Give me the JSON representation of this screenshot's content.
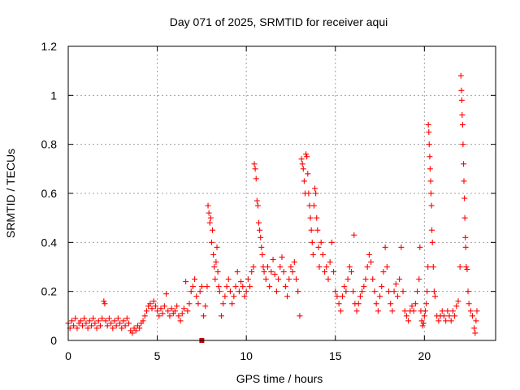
{
  "chart_data": {
    "type": "scatter",
    "title": "Day 071 of 2025, SRMTID for receiver aqui",
    "xlabel": "GPS time / hours",
    "ylabel": "SRMTID / TECUs",
    "xlim": [
      0,
      24
    ],
    "ylim": [
      0,
      1.2
    ],
    "xticks": [
      0,
      5,
      10,
      15,
      20
    ],
    "xtick_labels": [
      "0",
      "5",
      "10",
      "15",
      "20"
    ],
    "yticks": [
      0,
      0.2,
      0.4,
      0.6,
      0.8,
      1.0,
      1.2
    ],
    "ytick_labels": [
      "0",
      "0.2",
      "0.4",
      "0.6",
      "0.8",
      "1",
      "1.2"
    ],
    "grid": true,
    "marker": "+",
    "marker_color": "#ff0000",
    "series": [
      {
        "name": "SRMTID",
        "points": [
          [
            0.0,
            0.07
          ],
          [
            0.1,
            0.05
          ],
          [
            0.2,
            0.08
          ],
          [
            0.3,
            0.06
          ],
          [
            0.4,
            0.09
          ],
          [
            0.5,
            0.05
          ],
          [
            0.6,
            0.07
          ],
          [
            0.7,
            0.08
          ],
          [
            0.8,
            0.06
          ],
          [
            0.9,
            0.09
          ],
          [
            1.0,
            0.07
          ],
          [
            1.1,
            0.05
          ],
          [
            1.2,
            0.08
          ],
          [
            1.3,
            0.06
          ],
          [
            1.4,
            0.09
          ],
          [
            1.5,
            0.07
          ],
          [
            1.6,
            0.05
          ],
          [
            1.7,
            0.08
          ],
          [
            1.8,
            0.06
          ],
          [
            1.9,
            0.09
          ],
          [
            2.0,
            0.16
          ],
          [
            2.05,
            0.15
          ],
          [
            2.1,
            0.08
          ],
          [
            2.2,
            0.06
          ],
          [
            2.3,
            0.09
          ],
          [
            2.4,
            0.07
          ],
          [
            2.5,
            0.05
          ],
          [
            2.6,
            0.08
          ],
          [
            2.7,
            0.06
          ],
          [
            2.8,
            0.09
          ],
          [
            2.9,
            0.07
          ],
          [
            3.0,
            0.05
          ],
          [
            3.1,
            0.08
          ],
          [
            3.2,
            0.06
          ],
          [
            3.3,
            0.09
          ],
          [
            3.4,
            0.07
          ],
          [
            3.5,
            0.04
          ],
          [
            3.6,
            0.03
          ],
          [
            3.7,
            0.05
          ],
          [
            3.8,
            0.04
          ],
          [
            3.9,
            0.06
          ],
          [
            4.0,
            0.05
          ],
          [
            4.1,
            0.07
          ],
          [
            4.2,
            0.08
          ],
          [
            4.3,
            0.1
          ],
          [
            4.4,
            0.12
          ],
          [
            4.5,
            0.14
          ],
          [
            4.6,
            0.15
          ],
          [
            4.7,
            0.13
          ],
          [
            4.8,
            0.16
          ],
          [
            4.9,
            0.14
          ],
          [
            5.0,
            0.12
          ],
          [
            5.1,
            0.1
          ],
          [
            5.2,
            0.13
          ],
          [
            5.3,
            0.11
          ],
          [
            5.4,
            0.14
          ],
          [
            5.5,
            0.19
          ],
          [
            5.6,
            0.12
          ],
          [
            5.7,
            0.1
          ],
          [
            5.8,
            0.13
          ],
          [
            5.9,
            0.11
          ],
          [
            6.0,
            0.12
          ],
          [
            6.1,
            0.14
          ],
          [
            6.2,
            0.1
          ],
          [
            6.3,
            0.08
          ],
          [
            6.4,
            0.11
          ],
          [
            6.5,
            0.13
          ],
          [
            6.6,
            0.24
          ],
          [
            6.7,
            0.12
          ],
          [
            6.8,
            0.15
          ],
          [
            6.9,
            0.2
          ],
          [
            7.0,
            0.22
          ],
          [
            7.1,
            0.25
          ],
          [
            7.2,
            0.18
          ],
          [
            7.3,
            0.15
          ],
          [
            7.4,
            0.2
          ],
          [
            7.5,
            0.22
          ],
          [
            7.6,
            0.1
          ],
          [
            7.7,
            0.14
          ],
          [
            7.8,
            0.22
          ],
          [
            7.85,
            0.55
          ],
          [
            7.9,
            0.52
          ],
          [
            7.95,
            0.48
          ],
          [
            8.0,
            0.5
          ],
          [
            8.05,
            0.4
          ],
          [
            8.1,
            0.45
          ],
          [
            8.15,
            0.35
          ],
          [
            8.2,
            0.3
          ],
          [
            8.25,
            0.25
          ],
          [
            8.3,
            0.32
          ],
          [
            8.35,
            0.38
          ],
          [
            8.4,
            0.28
          ],
          [
            8.45,
            0.22
          ],
          [
            8.5,
            0.2
          ],
          [
            8.6,
            0.1
          ],
          [
            8.7,
            0.15
          ],
          [
            8.8,
            0.18
          ],
          [
            8.9,
            0.22
          ],
          [
            9.0,
            0.25
          ],
          [
            9.1,
            0.2
          ],
          [
            9.2,
            0.15
          ],
          [
            9.3,
            0.18
          ],
          [
            9.4,
            0.22
          ],
          [
            9.5,
            0.28
          ],
          [
            9.6,
            0.2
          ],
          [
            9.7,
            0.24
          ],
          [
            9.8,
            0.22
          ],
          [
            9.9,
            0.18
          ],
          [
            10.0,
            0.2
          ],
          [
            10.1,
            0.25
          ],
          [
            10.2,
            0.22
          ],
          [
            10.3,
            0.28
          ],
          [
            10.4,
            0.3
          ],
          [
            10.45,
            0.72
          ],
          [
            10.5,
            0.7
          ],
          [
            10.55,
            0.66
          ],
          [
            10.6,
            0.57
          ],
          [
            10.65,
            0.55
          ],
          [
            10.7,
            0.48
          ],
          [
            10.75,
            0.45
          ],
          [
            10.8,
            0.42
          ],
          [
            10.85,
            0.38
          ],
          [
            10.9,
            0.35
          ],
          [
            10.95,
            0.3
          ],
          [
            11.0,
            0.28
          ],
          [
            11.1,
            0.25
          ],
          [
            11.2,
            0.3
          ],
          [
            11.3,
            0.22
          ],
          [
            11.4,
            0.28
          ],
          [
            11.5,
            0.33
          ],
          [
            11.6,
            0.27
          ],
          [
            11.7,
            0.2
          ],
          [
            11.8,
            0.25
          ],
          [
            11.9,
            0.3
          ],
          [
            12.0,
            0.34
          ],
          [
            12.1,
            0.28
          ],
          [
            12.2,
            0.22
          ],
          [
            12.3,
            0.18
          ],
          [
            12.4,
            0.25
          ],
          [
            12.5,
            0.3
          ],
          [
            12.6,
            0.28
          ],
          [
            12.7,
            0.32
          ],
          [
            12.8,
            0.25
          ],
          [
            12.9,
            0.2
          ],
          [
            13.0,
            0.1
          ],
          [
            13.1,
            0.74
          ],
          [
            13.15,
            0.72
          ],
          [
            13.2,
            0.7
          ],
          [
            13.25,
            0.65
          ],
          [
            13.3,
            0.6
          ],
          [
            13.35,
            0.76
          ],
          [
            13.4,
            0.75
          ],
          [
            13.45,
            0.68
          ],
          [
            13.5,
            0.6
          ],
          [
            13.55,
            0.55
          ],
          [
            13.6,
            0.5
          ],
          [
            13.65,
            0.45
          ],
          [
            13.7,
            0.4
          ],
          [
            13.75,
            0.35
          ],
          [
            13.8,
            0.55
          ],
          [
            13.85,
            0.62
          ],
          [
            13.9,
            0.6
          ],
          [
            13.95,
            0.5
          ],
          [
            14.0,
            0.45
          ],
          [
            14.05,
            0.38
          ],
          [
            14.1,
            0.3
          ],
          [
            14.2,
            0.4
          ],
          [
            14.3,
            0.35
          ],
          [
            14.4,
            0.28
          ],
          [
            14.5,
            0.3
          ],
          [
            14.6,
            0.25
          ],
          [
            14.7,
            0.32
          ],
          [
            14.8,
            0.4
          ],
          [
            14.9,
            0.28
          ],
          [
            15.0,
            0.2
          ],
          [
            15.1,
            0.18
          ],
          [
            15.2,
            0.15
          ],
          [
            15.3,
            0.12
          ],
          [
            15.4,
            0.18
          ],
          [
            15.5,
            0.22
          ],
          [
            15.6,
            0.2
          ],
          [
            15.7,
            0.25
          ],
          [
            15.8,
            0.3
          ],
          [
            15.9,
            0.28
          ],
          [
            16.0,
            0.2
          ],
          [
            16.05,
            0.43
          ],
          [
            16.1,
            0.15
          ],
          [
            16.2,
            0.12
          ],
          [
            16.3,
            0.15
          ],
          [
            16.4,
            0.18
          ],
          [
            16.5,
            0.2
          ],
          [
            16.6,
            0.22
          ],
          [
            16.7,
            0.25
          ],
          [
            16.8,
            0.3
          ],
          [
            16.9,
            0.35
          ],
          [
            17.0,
            0.32
          ],
          [
            17.1,
            0.25
          ],
          [
            17.2,
            0.2
          ],
          [
            17.3,
            0.15
          ],
          [
            17.4,
            0.12
          ],
          [
            17.5,
            0.18
          ],
          [
            17.6,
            0.22
          ],
          [
            17.7,
            0.28
          ],
          [
            17.8,
            0.38
          ],
          [
            17.9,
            0.3
          ],
          [
            18.0,
            0.2
          ],
          [
            18.1,
            0.15
          ],
          [
            18.2,
            0.12
          ],
          [
            18.3,
            0.2
          ],
          [
            18.4,
            0.23
          ],
          [
            18.5,
            0.18
          ],
          [
            18.6,
            0.25
          ],
          [
            18.7,
            0.38
          ],
          [
            18.8,
            0.2
          ],
          [
            18.9,
            0.12
          ],
          [
            19.0,
            0.1
          ],
          [
            19.1,
            0.08
          ],
          [
            19.2,
            0.12
          ],
          [
            19.3,
            0.14
          ],
          [
            19.4,
            0.12
          ],
          [
            19.5,
            0.15
          ],
          [
            19.6,
            0.2
          ],
          [
            19.7,
            0.25
          ],
          [
            19.75,
            0.38
          ],
          [
            19.8,
            0.12
          ],
          [
            19.85,
            0.08
          ],
          [
            19.9,
            0.06
          ],
          [
            19.95,
            0.07
          ],
          [
            20.0,
            0.1
          ],
          [
            20.05,
            0.12
          ],
          [
            20.1,
            0.15
          ],
          [
            20.15,
            0.2
          ],
          [
            20.2,
            0.3
          ],
          [
            20.22,
            0.88
          ],
          [
            20.25,
            0.85
          ],
          [
            20.27,
            0.8
          ],
          [
            20.3,
            0.75
          ],
          [
            20.32,
            0.7
          ],
          [
            20.35,
            0.65
          ],
          [
            20.37,
            0.6
          ],
          [
            20.4,
            0.55
          ],
          [
            20.42,
            0.45
          ],
          [
            20.45,
            0.4
          ],
          [
            20.5,
            0.3
          ],
          [
            20.55,
            0.2
          ],
          [
            20.6,
            0.18
          ],
          [
            20.7,
            0.1
          ],
          [
            20.8,
            0.08
          ],
          [
            20.9,
            0.1
          ],
          [
            21.0,
            0.12
          ],
          [
            21.1,
            0.1
          ],
          [
            21.2,
            0.08
          ],
          [
            21.3,
            0.12
          ],
          [
            21.4,
            0.1
          ],
          [
            21.5,
            0.08
          ],
          [
            21.6,
            0.12
          ],
          [
            21.7,
            0.1
          ],
          [
            21.8,
            0.14
          ],
          [
            21.9,
            0.16
          ],
          [
            22.0,
            0.3
          ],
          [
            22.05,
            1.08
          ],
          [
            22.08,
            1.02
          ],
          [
            22.1,
            0.98
          ],
          [
            22.12,
            0.92
          ],
          [
            22.15,
            0.88
          ],
          [
            22.17,
            0.8
          ],
          [
            22.2,
            0.72
          ],
          [
            22.22,
            0.65
          ],
          [
            22.25,
            0.58
          ],
          [
            22.27,
            0.5
          ],
          [
            22.3,
            0.42
          ],
          [
            22.32,
            0.38
          ],
          [
            22.35,
            0.3
          ],
          [
            22.4,
            0.29
          ],
          [
            22.45,
            0.2
          ],
          [
            22.5,
            0.15
          ],
          [
            22.6,
            0.12
          ],
          [
            22.7,
            0.1
          ],
          [
            22.8,
            0.05
          ],
          [
            22.85,
            0.03
          ],
          [
            22.9,
            0.08
          ],
          [
            22.95,
            0.12
          ]
        ]
      }
    ],
    "annotations": [
      {
        "x": 7.5,
        "y": 0.0,
        "marker": "square",
        "color": "#cc0000"
      }
    ]
  }
}
